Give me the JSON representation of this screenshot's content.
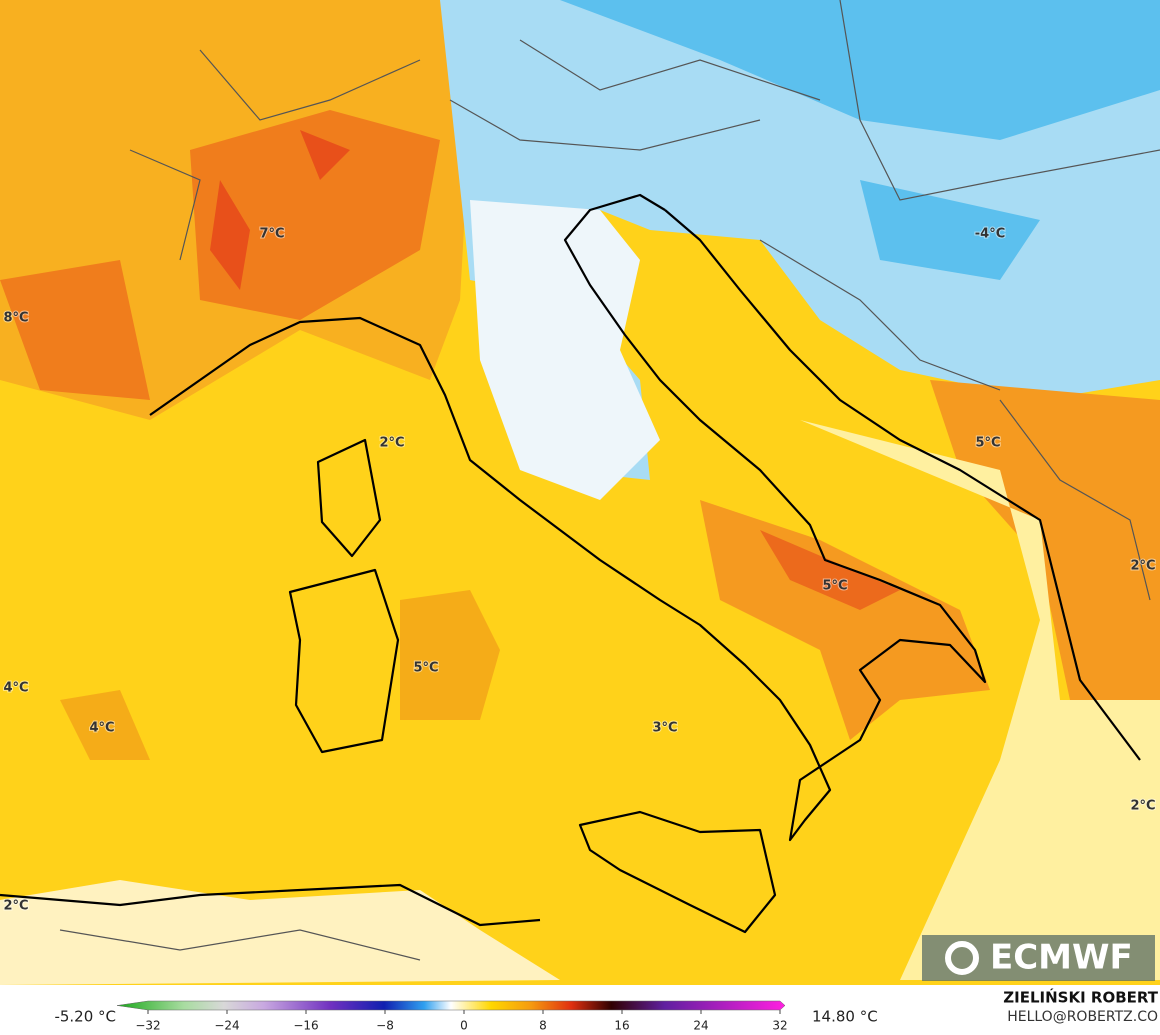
{
  "map_labels": [
    "7°C",
    "8°C",
    "-4°C",
    "2°C",
    "5°C",
    "2°C",
    "5°C",
    "4°C",
    "4°C",
    "3°C",
    "2°C",
    "2°C"
  ],
  "colorbar": {
    "min_label": "-5.20 °C",
    "max_label": "14.80 °C",
    "ticks": [
      {
        "value": -32,
        "label": "−32"
      },
      {
        "value": -24,
        "label": "−24"
      },
      {
        "value": -16,
        "label": "−16"
      },
      {
        "value": -8,
        "label": "−8"
      },
      0,
      8,
      16,
      24,
      32
    ]
  },
  "credits": {
    "author": "ZIELIŃSKI ROBERT",
    "email": "HELLO@ROBERTZ.CO"
  },
  "logo": "ECMWF"
}
